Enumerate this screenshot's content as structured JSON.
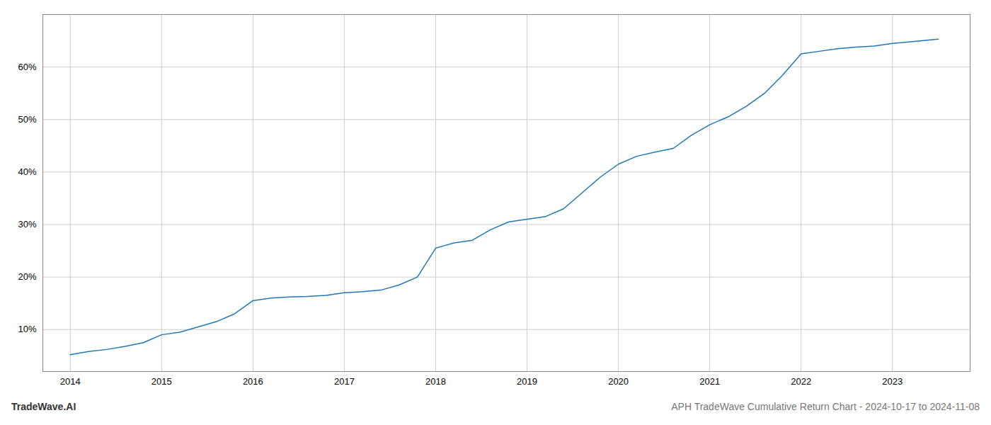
{
  "chart_data": {
    "type": "line",
    "title": "APH TradeWave Cumulative Return Chart - 2024-10-17 to 2024-11-08",
    "annotations": [
      "TradeWave.AI"
    ],
    "x": [
      2014.0,
      2014.2,
      2014.4,
      2014.6,
      2014.8,
      2015.0,
      2015.2,
      2015.4,
      2015.6,
      2015.8,
      2016.0,
      2016.2,
      2016.4,
      2016.6,
      2016.8,
      2017.0,
      2017.2,
      2017.4,
      2017.6,
      2017.8,
      2018.0,
      2018.1,
      2018.2,
      2018.4,
      2018.6,
      2018.8,
      2019.0,
      2019.2,
      2019.4,
      2019.6,
      2019.8,
      2020.0,
      2020.2,
      2020.4,
      2020.6,
      2020.8,
      2021.0,
      2021.2,
      2021.4,
      2021.6,
      2021.8,
      2022.0,
      2022.2,
      2022.4,
      2022.6,
      2022.8,
      2023.0,
      2023.2,
      2023.5
    ],
    "values": [
      5.2,
      5.8,
      6.2,
      6.8,
      7.5,
      9.0,
      9.5,
      10.5,
      11.5,
      13.0,
      15.5,
      16.0,
      16.2,
      16.3,
      16.5,
      17.0,
      17.2,
      17.5,
      18.5,
      20.0,
      25.5,
      26.0,
      26.5,
      27.0,
      29.0,
      30.5,
      31.0,
      31.5,
      33.0,
      36.0,
      39.0,
      41.5,
      43.0,
      43.8,
      44.5,
      47.0,
      49.0,
      50.5,
      52.5,
      55.0,
      58.5,
      62.5,
      63.0,
      63.5,
      63.8,
      64.0,
      64.5,
      64.8,
      65.3
    ],
    "color": "#1f77b4",
    "xlim": [
      2013.7,
      2023.85
    ],
    "xticks": [
      2014,
      2015,
      2016,
      2017,
      2018,
      2019,
      2020,
      2021,
      2022,
      2023
    ],
    "ylim": [
      2,
      70
    ],
    "yticks": [
      {
        "value": 10,
        "label": "10%"
      },
      {
        "value": 20,
        "label": "20%"
      },
      {
        "value": 30,
        "label": "30%"
      },
      {
        "value": 40,
        "label": "40%"
      },
      {
        "value": 50,
        "label": "50%"
      },
      {
        "value": 60,
        "label": "60%"
      }
    ],
    "grid": true
  }
}
